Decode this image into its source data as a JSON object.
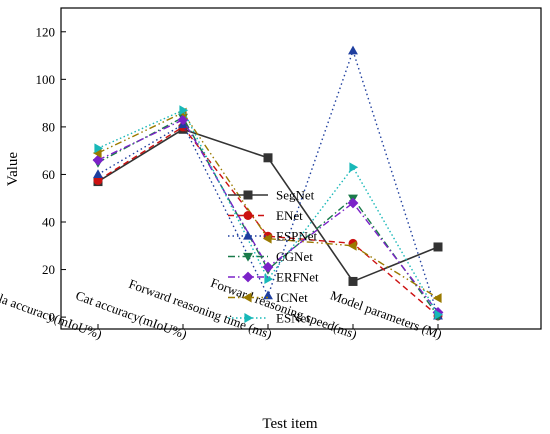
{
  "chart_data": {
    "type": "line",
    "xlabel": "Test item",
    "ylabel": "Value",
    "ylim": [
      -5,
      130
    ],
    "yticks": [
      0,
      20,
      40,
      60,
      80,
      100,
      120
    ],
    "grid": false,
    "legend_position": "center",
    "categories": [
      "Cla accuracy(mIoU%)",
      "Cat accuracy(mIoU%)",
      "Forward reasoning time (ms)",
      "Forward reasoning speed(ms)",
      "Model parameters (M)"
    ],
    "series": [
      {
        "name": "SegNet",
        "values": [
          57,
          79,
          67,
          15,
          29.5
        ],
        "color": "#333333",
        "dash": "solid",
        "marker": "square"
      },
      {
        "name": "ENet",
        "values": [
          57.5,
          80,
          34,
          31,
          0.5
        ],
        "color": "#cc1111",
        "dash": "dash",
        "marker": "circle"
      },
      {
        "name": "ESPNet",
        "values": [
          60,
          81,
          9,
          112,
          0.5
        ],
        "color": "#1f3f9f",
        "dash": "dot",
        "marker": "triangle-up"
      },
      {
        "name": "CGNet",
        "values": [
          65,
          84,
          20,
          50,
          0.5
        ],
        "color": "#1a7a4a",
        "dash": "dashdot",
        "marker": "triangle-down"
      },
      {
        "name": "ERFNet",
        "values": [
          66,
          83,
          21,
          48,
          2
        ],
        "color": "#7b22c8",
        "dash": "dashdot",
        "marker": "diamond"
      },
      {
        "name": "ICNet",
        "values": [
          69,
          86,
          33,
          30,
          8
        ],
        "color": "#9a7a00",
        "dash": "dashdotdot",
        "marker": "triangle-left"
      },
      {
        "name": "ESNet",
        "values": [
          71,
          87,
          16,
          63,
          1
        ],
        "color": "#18b8b8",
        "dash": "shortdot",
        "marker": "triangle-right"
      }
    ]
  }
}
